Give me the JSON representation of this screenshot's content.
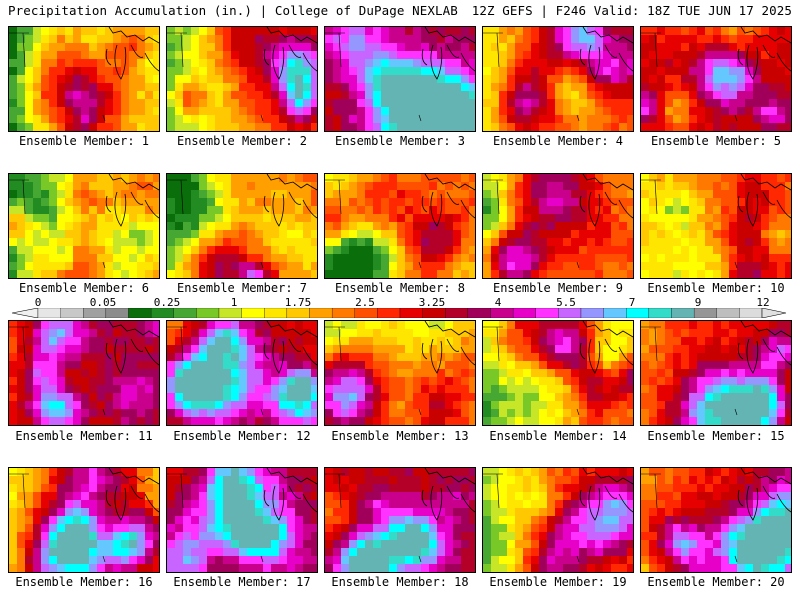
{
  "header": {
    "title": "Precipitation Accumulation (in.) | College of DuPage NEXLAB",
    "run_info": "12Z GEFS | F246 Valid: 18Z TUE JUN 17 2025"
  },
  "members": [
    {
      "label": "Ensemble Member: 1",
      "seed": 11,
      "dry": 0.45,
      "wet": 0.15,
      "hot": [
        0.3,
        0.15
      ]
    },
    {
      "label": "Ensemble Member: 2",
      "seed": 23,
      "dry": 0.35,
      "wet": 0.2,
      "hot": [
        0.45,
        0.1
      ]
    },
    {
      "label": "Ensemble Member: 3",
      "seed": 37,
      "dry": 0.1,
      "wet": 0.55,
      "hot": [
        0.6,
        0.6
      ]
    },
    {
      "label": "Ensemble Member: 4",
      "seed": 41,
      "dry": 0.3,
      "wet": 0.35,
      "hot": [
        0.25,
        0.75
      ]
    },
    {
      "label": "Ensemble Member: 5",
      "seed": 53,
      "dry": 0.15,
      "wet": 0.45,
      "hot": [
        0.55,
        0.35
      ]
    },
    {
      "label": "Ensemble Member: 6",
      "seed": 67,
      "dry": 0.45,
      "wet": 0.25,
      "hot": [
        0.45,
        0.2
      ]
    },
    {
      "label": "Ensemble Member: 7",
      "seed": 71,
      "dry": 0.35,
      "wet": 0.35,
      "hot": [
        0.3,
        0.8
      ]
    },
    {
      "label": "Ensemble Member: 8",
      "seed": 83,
      "dry": 0.3,
      "wet": 0.3,
      "hot": [
        0.7,
        0.6
      ]
    },
    {
      "label": "Ensemble Member: 9",
      "seed": 97,
      "dry": 0.4,
      "wet": 0.3,
      "hot": [
        0.15,
        0.85
      ]
    },
    {
      "label": "Ensemble Member: 10",
      "seed": 101,
      "dry": 0.25,
      "wet": 0.3,
      "hot": [
        0.65,
        0.55
      ]
    },
    {
      "label": "Ensemble Member: 11",
      "seed": 113,
      "dry": 0.15,
      "wet": 0.5,
      "hot": [
        0.3,
        0.75
      ]
    },
    {
      "label": "Ensemble Member: 12",
      "seed": 127,
      "dry": 0.25,
      "wet": 0.4,
      "hot": [
        0.8,
        0.7
      ]
    },
    {
      "label": "Ensemble Member: 13",
      "seed": 131,
      "dry": 0.4,
      "wet": 0.25,
      "hot": [
        0.7,
        0.8
      ]
    },
    {
      "label": "Ensemble Member: 14",
      "seed": 149,
      "dry": 0.4,
      "wet": 0.3,
      "hot": [
        0.6,
        0.2
      ]
    },
    {
      "label": "Ensemble Member: 15",
      "seed": 157,
      "dry": 0.2,
      "wet": 0.4,
      "hot": [
        0.9,
        0.3
      ]
    },
    {
      "label": "Ensemble Member: 16",
      "seed": 163,
      "dry": 0.3,
      "wet": 0.35,
      "hot": [
        0.85,
        0.55
      ]
    },
    {
      "label": "Ensemble Member: 17",
      "seed": 179,
      "dry": 0.15,
      "wet": 0.5,
      "hot": [
        0.6,
        0.55
      ]
    },
    {
      "label": "Ensemble Member: 18",
      "seed": 181,
      "dry": 0.1,
      "wet": 0.55,
      "hot": [
        0.55,
        0.65
      ]
    },
    {
      "label": "Ensemble Member: 19",
      "seed": 191,
      "dry": 0.35,
      "wet": 0.3,
      "hot": [
        0.4,
        0.9
      ]
    },
    {
      "label": "Ensemble Member: 20",
      "seed": 199,
      "dry": 0.2,
      "wet": 0.4,
      "hot": [
        0.75,
        0.8
      ]
    }
  ],
  "color_scale": {
    "tick_labels": [
      "0",
      "0.05",
      "0.25",
      "1",
      "1.75",
      "2.5",
      "3.25",
      "4",
      "5.5",
      "7",
      "9",
      "12"
    ],
    "colors": [
      "#e6e6e6",
      "#c8c8c8",
      "#a0a0a0",
      "#8c8c8c",
      "#0a6e0a",
      "#228b22",
      "#46a832",
      "#78c828",
      "#c8e628",
      "#ffff00",
      "#ffe600",
      "#ffc800",
      "#ffa000",
      "#ff7800",
      "#ff5000",
      "#ff2800",
      "#e60000",
      "#c80000",
      "#b40028",
      "#a0005a",
      "#c8008c",
      "#e600c8",
      "#ff32ff",
      "#c864ff",
      "#9696ff",
      "#64c8ff",
      "#00ffff",
      "#32dcc8",
      "#64b4b4",
      "#969696",
      "#bebebe",
      "#dcdcdc"
    ]
  }
}
